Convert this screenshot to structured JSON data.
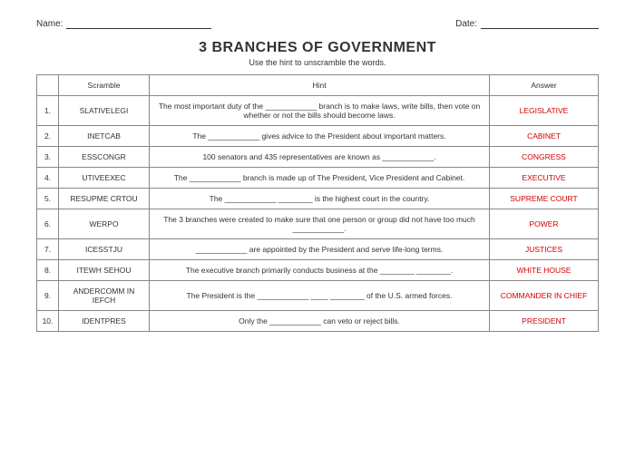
{
  "header": {
    "name_label": "Name:",
    "date_label": "Date:"
  },
  "title": "3 BRANCHES OF GOVERNMENT",
  "subtitle": "Use the hint to unscramble the words.",
  "columns": {
    "num": "",
    "scramble": "Scramble",
    "hint": "Hint",
    "answer": "Answer"
  },
  "rows": [
    {
      "n": "1.",
      "scramble": "SLATIVELEGI",
      "hint": "The most important duty of the ____________ branch is to make laws, write bills, then vote on whether or not the bills should become laws.",
      "answer": "LEGISLATIVE"
    },
    {
      "n": "2.",
      "scramble": "INETCAB",
      "hint": "The ____________ gives advice to the President about important matters.",
      "answer": "CABINET"
    },
    {
      "n": "3.",
      "scramble": "ESSCONGR",
      "hint": "100 senators and 435 representatives are known as ____________.",
      "answer": "CONGRESS"
    },
    {
      "n": "4.",
      "scramble": "UTIVEEXEC",
      "hint": "The ____________ branch is made up of The President, Vice President and Cabinet.",
      "answer": "EXECUTIVE"
    },
    {
      "n": "5.",
      "scramble": "RESUPME CRTOU",
      "hint": "The ____________ ________ is the highest court in the country.",
      "answer": "SUPREME COURT"
    },
    {
      "n": "6.",
      "scramble": "WERPO",
      "hint": "The 3 branches were created to make sure that one person or group did not have too much ____________.",
      "answer": "POWER"
    },
    {
      "n": "7.",
      "scramble": "ICESSTJU",
      "hint": "____________ are appointed by the President and serve life-long terms.",
      "answer": "JUSTICES"
    },
    {
      "n": "8.",
      "scramble": "ITEWH SEHOU",
      "hint": "The executive branch primarily conducts business at the ________ ________.",
      "answer": "WHITE HOUSE"
    },
    {
      "n": "9.",
      "scramble": "ANDERCOMM IN IEFCH",
      "hint": "The President is the ____________ ____ ________ of the U.S. armed forces.",
      "answer": "COMMANDER IN CHIEF"
    },
    {
      "n": "10.",
      "scramble": "IDENTPRES",
      "hint": "Only the ____________ can veto or reject bills.",
      "answer": "PRESIDENT"
    }
  ],
  "style": {
    "answer_color": "#d40000",
    "border_color": "#888888",
    "title_fontsize": 16,
    "body_fontsize": 9
  }
}
